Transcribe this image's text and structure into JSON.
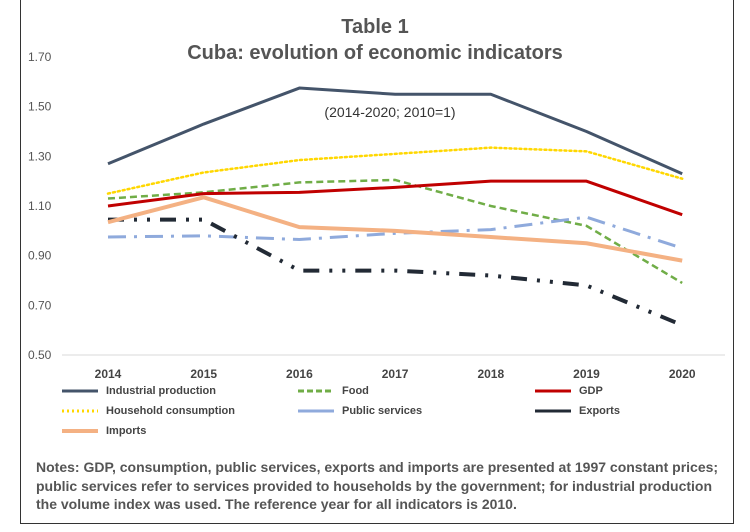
{
  "chart_data": {
    "type": "line",
    "title": "Table 1",
    "subtitle": "Cuba: evolution of economic indicators",
    "annotation": "(2014-2020; 2010=1)",
    "x": [
      "2014",
      "2015",
      "2016",
      "2017",
      "2018",
      "2019",
      "2020"
    ],
    "ylim": [
      0.5,
      1.7
    ],
    "yticks": [
      "0.50",
      "0.70",
      "0.90",
      "1.10",
      "1.30",
      "1.50",
      "1.70"
    ],
    "grid": false,
    "legend": "bottom",
    "series": [
      {
        "name": "Industrial production",
        "color": "#44546a",
        "style": "solid",
        "values": [
          1.27,
          1.43,
          1.575,
          1.55,
          1.55,
          1.4,
          1.23
        ]
      },
      {
        "name": "Food",
        "color": "#70ad47",
        "style": "dash",
        "values": [
          1.13,
          1.155,
          1.195,
          1.205,
          1.1,
          1.02,
          0.79
        ]
      },
      {
        "name": "GDP",
        "color": "#c00000",
        "style": "solid",
        "values": [
          1.1,
          1.15,
          1.155,
          1.175,
          1.2,
          1.2,
          1.065
        ]
      },
      {
        "name": "Household consumption",
        "color": "#ffd700",
        "style": "dot",
        "values": [
          1.15,
          1.235,
          1.285,
          1.31,
          1.335,
          1.32,
          1.21
        ]
      },
      {
        "name": "Public services",
        "color": "#8faadc",
        "style": "dashdot",
        "values": [
          0.975,
          0.98,
          0.965,
          0.99,
          1.005,
          1.055,
          0.93
        ]
      },
      {
        "name": "Exports",
        "color": "#222a35",
        "style": "longdashdotdot",
        "values": [
          1.045,
          1.045,
          0.84,
          0.84,
          0.82,
          0.78,
          0.62
        ]
      },
      {
        "name": "Imports",
        "color": "#f4b183",
        "style": "solid",
        "values": [
          1.035,
          1.135,
          1.015,
          1.0,
          0.975,
          0.95,
          0.88
        ]
      }
    ]
  },
  "notes": "Notes: GDP, consumption, public services, exports and imports are presented at 1997 constant prices; public services refer to services provided to households by the government; for industrial production the volume index was used. The reference year for all indicators is 2010."
}
